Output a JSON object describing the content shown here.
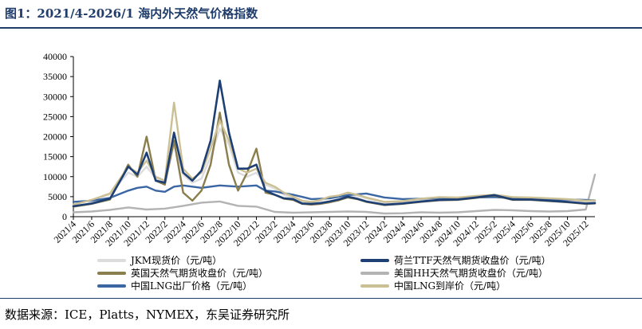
{
  "header": {
    "title": "图1：2021/4-2026/1 海内外天然气价格指数"
  },
  "footer": {
    "source": "数据来源：ICE，Platts，NYMEX，东吴证券研究所"
  },
  "chart_data": {
    "type": "line",
    "title": "2021/4-2026/1 海内外天然气价格指数",
    "ylim": [
      0,
      40000
    ],
    "yticks": [
      0,
      5000,
      10000,
      15000,
      20000,
      25000,
      30000,
      35000,
      40000
    ],
    "x_start": "2021/4",
    "x_end": "2026/1",
    "xtick_labels": [
      "2021/4",
      "2021/6",
      "2021/8",
      "2021/10",
      "2021/12",
      "2022/2",
      "2022/4",
      "2022/6",
      "2022/8",
      "2022/10",
      "2022/12",
      "2023/2",
      "2023/4",
      "2023/6",
      "2023/8",
      "2023/10",
      "2023/12",
      "2024/2",
      "2024/4",
      "2024/6",
      "2024/8",
      "2024/10",
      "2024/12",
      "2025/2",
      "2025/4",
      "2025/6",
      "2025/8",
      "2025/10",
      "2025/12"
    ],
    "grid": false,
    "legend_position": "bottom",
    "series": [
      {
        "name": "JKM现货价（元/吨）",
        "color": "#dcdcdc",
        "points": [
          [
            "2021/4",
            3000
          ],
          [
            "2021/6",
            4200
          ],
          [
            "2021/8",
            5600
          ],
          [
            "2021/10",
            11000
          ],
          [
            "2021/11",
            10000
          ],
          [
            "2021/12",
            12500
          ],
          [
            "2022/1",
            9500
          ],
          [
            "2022/2",
            8500
          ],
          [
            "2022/3",
            18000
          ],
          [
            "2022/4",
            10500
          ],
          [
            "2022/5",
            8500
          ],
          [
            "2022/6",
            9500
          ],
          [
            "2022/7",
            15000
          ],
          [
            "2022/8",
            22000
          ],
          [
            "2022/9",
            18000
          ],
          [
            "2022/10",
            11000
          ],
          [
            "2022/11",
            10000
          ],
          [
            "2022/12",
            11000
          ],
          [
            "2023/1",
            8000
          ],
          [
            "2023/2",
            7000
          ],
          [
            "2023/3",
            5500
          ],
          [
            "2023/4",
            4500
          ],
          [
            "2023/5",
            3800
          ],
          [
            "2023/6",
            3500
          ],
          [
            "2023/7",
            4000
          ],
          [
            "2023/8",
            4800
          ],
          [
            "2023/9",
            5000
          ],
          [
            "2023/10",
            5600
          ],
          [
            "2023/11",
            5200
          ],
          [
            "2023/12",
            4600
          ],
          [
            "2024/2",
            3500
          ],
          [
            "2024/4",
            3700
          ],
          [
            "2024/6",
            4300
          ],
          [
            "2024/8",
            4700
          ],
          [
            "2024/10",
            4600
          ],
          [
            "2024/12",
            5000
          ],
          [
            "2025/2",
            5300
          ],
          [
            "2025/4",
            4700
          ],
          [
            "2025/6",
            4600
          ],
          [
            "2025/8",
            4400
          ],
          [
            "2025/10",
            4200
          ],
          [
            "2025/12",
            3800
          ],
          [
            "2026/1",
            3900
          ]
        ]
      },
      {
        "name": "荷兰TTF天然气期货收盘价（元/吨）",
        "color": "#1e3f73",
        "points": [
          [
            "2021/4",
            2600
          ],
          [
            "2021/6",
            3300
          ],
          [
            "2021/8",
            4500
          ],
          [
            "2021/10",
            12500
          ],
          [
            "2021/11",
            10500
          ],
          [
            "2021/12",
            16000
          ],
          [
            "2022/1",
            9000
          ],
          [
            "2022/2",
            8500
          ],
          [
            "2022/3",
            21000
          ],
          [
            "2022/4",
            11000
          ],
          [
            "2022/5",
            9000
          ],
          [
            "2022/6",
            11500
          ],
          [
            "2022/7",
            19000
          ],
          [
            "2022/8",
            34000
          ],
          [
            "2022/9",
            21000
          ],
          [
            "2022/10",
            12000
          ],
          [
            "2022/11",
            12000
          ],
          [
            "2022/12",
            13000
          ],
          [
            "2023/1",
            6500
          ],
          [
            "2023/2",
            5500
          ],
          [
            "2023/3",
            4600
          ],
          [
            "2023/4",
            4400
          ],
          [
            "2023/5",
            3300
          ],
          [
            "2023/6",
            3200
          ],
          [
            "2023/7",
            3400
          ],
          [
            "2023/8",
            3800
          ],
          [
            "2023/9",
            4300
          ],
          [
            "2023/10",
            5000
          ],
          [
            "2023/11",
            4500
          ],
          [
            "2023/12",
            3800
          ],
          [
            "2024/2",
            3000
          ],
          [
            "2024/4",
            3300
          ],
          [
            "2024/6",
            3800
          ],
          [
            "2024/8",
            4200
          ],
          [
            "2024/10",
            4300
          ],
          [
            "2024/12",
            4800
          ],
          [
            "2025/2",
            5400
          ],
          [
            "2025/4",
            4300
          ],
          [
            "2025/6",
            4300
          ],
          [
            "2025/8",
            4000
          ],
          [
            "2025/10",
            3700
          ],
          [
            "2025/12",
            3300
          ],
          [
            "2026/1",
            3400
          ]
        ]
      },
      {
        "name": "英国天然气期货收盘价（元/吨）",
        "color": "#8a7e4c",
        "points": [
          [
            "2021/4",
            2500
          ],
          [
            "2021/6",
            3200
          ],
          [
            "2021/8",
            4300
          ],
          [
            "2021/10",
            13000
          ],
          [
            "2021/11",
            10000
          ],
          [
            "2021/12",
            20000
          ],
          [
            "2022/1",
            9000
          ],
          [
            "2022/2",
            8000
          ],
          [
            "2022/3",
            19000
          ],
          [
            "2022/4",
            6000
          ],
          [
            "2022/5",
            4000
          ],
          [
            "2022/6",
            6500
          ],
          [
            "2022/7",
            13000
          ],
          [
            "2022/8",
            26000
          ],
          [
            "2022/9",
            13000
          ],
          [
            "2022/10",
            6500
          ],
          [
            "2022/11",
            11000
          ],
          [
            "2022/12",
            17000
          ],
          [
            "2023/1",
            6000
          ],
          [
            "2023/2",
            5500
          ],
          [
            "2023/3",
            4500
          ],
          [
            "2023/4",
            4200
          ],
          [
            "2023/5",
            3200
          ],
          [
            "2023/6",
            3000
          ],
          [
            "2023/7",
            3200
          ],
          [
            "2023/8",
            3600
          ],
          [
            "2023/9",
            4100
          ],
          [
            "2023/10",
            4800
          ],
          [
            "2023/11",
            4400
          ],
          [
            "2023/12",
            3700
          ],
          [
            "2024/2",
            2900
          ],
          [
            "2024/4",
            3200
          ],
          [
            "2024/6",
            3700
          ],
          [
            "2024/8",
            4100
          ],
          [
            "2024/10",
            4200
          ],
          [
            "2024/12",
            4700
          ],
          [
            "2025/2",
            5300
          ],
          [
            "2025/4",
            4200
          ],
          [
            "2025/6",
            4200
          ],
          [
            "2025/8",
            3900
          ],
          [
            "2025/10",
            3600
          ],
          [
            "2025/12",
            3200
          ],
          [
            "2026/1",
            3300
          ]
        ]
      },
      {
        "name": "美国HH天然气期货收盘价（元/吨）",
        "color": "#b3b3b3",
        "points": [
          [
            "2021/4",
            1100
          ],
          [
            "2021/6",
            1300
          ],
          [
            "2021/8",
            1700
          ],
          [
            "2021/10",
            2300
          ],
          [
            "2021/12",
            1800
          ],
          [
            "2022/2",
            2000
          ],
          [
            "2022/4",
            2700
          ],
          [
            "2022/6",
            3500
          ],
          [
            "2022/8",
            3800
          ],
          [
            "2022/10",
            2700
          ],
          [
            "2022/12",
            2500
          ],
          [
            "2023/2",
            1200
          ],
          [
            "2023/4",
            1000
          ],
          [
            "2023/6",
            1100
          ],
          [
            "2023/8",
            1200
          ],
          [
            "2023/10",
            1300
          ],
          [
            "2023/12",
            1200
          ],
          [
            "2024/2",
            800
          ],
          [
            "2024/4",
            850
          ],
          [
            "2024/6",
            1100
          ],
          [
            "2024/8",
            1000
          ],
          [
            "2024/10",
            1100
          ],
          [
            "2024/12",
            1400
          ],
          [
            "2025/2",
            1700
          ],
          [
            "2025/4",
            1600
          ],
          [
            "2025/6",
            1400
          ],
          [
            "2025/8",
            1300
          ],
          [
            "2025/10",
            1400
          ],
          [
            "2025/12",
            1800
          ],
          [
            "2026/1",
            10500
          ]
        ]
      },
      {
        "name": "中国LNG出厂价格（元/吨）",
        "color": "#3a66a3",
        "points": [
          [
            "2021/4",
            3700
          ],
          [
            "2021/6",
            4000
          ],
          [
            "2021/8",
            4700
          ],
          [
            "2021/10",
            6500
          ],
          [
            "2021/11",
            7200
          ],
          [
            "2021/12",
            7500
          ],
          [
            "2022/1",
            6500
          ],
          [
            "2022/2",
            6200
          ],
          [
            "2022/3",
            7500
          ],
          [
            "2022/4",
            7800
          ],
          [
            "2022/6",
            7200
          ],
          [
            "2022/8",
            7800
          ],
          [
            "2022/10",
            7500
          ],
          [
            "2022/12",
            7800
          ],
          [
            "2023/1",
            6500
          ],
          [
            "2023/2",
            6300
          ],
          [
            "2023/4",
            5500
          ],
          [
            "2023/6",
            4400
          ],
          [
            "2023/8",
            4600
          ],
          [
            "2023/10",
            5400
          ],
          [
            "2023/12",
            5800
          ],
          [
            "2024/2",
            4800
          ],
          [
            "2024/4",
            4400
          ],
          [
            "2024/6",
            4500
          ],
          [
            "2024/8",
            4700
          ],
          [
            "2024/10",
            4600
          ],
          [
            "2024/12",
            4800
          ],
          [
            "2025/2",
            4900
          ],
          [
            "2025/4",
            4600
          ],
          [
            "2025/6",
            4500
          ],
          [
            "2025/8",
            4300
          ],
          [
            "2025/10",
            4300
          ],
          [
            "2025/12",
            4200
          ],
          [
            "2026/1",
            4100
          ]
        ]
      },
      {
        "name": "中国LNG到岸价（元/吨）",
        "color": "#cbbf94",
        "points": [
          [
            "2021/4",
            3000
          ],
          [
            "2021/6",
            4200
          ],
          [
            "2021/8",
            5800
          ],
          [
            "2021/10",
            12500
          ],
          [
            "2021/11",
            11000
          ],
          [
            "2021/12",
            14000
          ],
          [
            "2022/1",
            10000
          ],
          [
            "2022/2",
            9000
          ],
          [
            "2022/3",
            28500
          ],
          [
            "2022/4",
            12000
          ],
          [
            "2022/5",
            9500
          ],
          [
            "2022/6",
            11000
          ],
          [
            "2022/7",
            17000
          ],
          [
            "2022/8",
            24000
          ],
          [
            "2022/9",
            19000
          ],
          [
            "2022/10",
            12000
          ],
          [
            "2022/11",
            11000
          ],
          [
            "2022/12",
            12000
          ],
          [
            "2023/1",
            8500
          ],
          [
            "2023/2",
            7500
          ],
          [
            "2023/3",
            6000
          ],
          [
            "2023/4",
            5000
          ],
          [
            "2023/5",
            4000
          ],
          [
            "2023/6",
            3700
          ],
          [
            "2023/7",
            4200
          ],
          [
            "2023/8",
            5000
          ],
          [
            "2023/9",
            5300
          ],
          [
            "2023/10",
            6000
          ],
          [
            "2023/11",
            5500
          ],
          [
            "2023/12",
            4800
          ],
          [
            "2024/2",
            3700
          ],
          [
            "2024/4",
            3900
          ],
          [
            "2024/6",
            4500
          ],
          [
            "2024/8",
            4900
          ],
          [
            "2024/10",
            4800
          ],
          [
            "2024/12",
            5200
          ],
          [
            "2025/2",
            5500
          ],
          [
            "2025/4",
            4900
          ],
          [
            "2025/6",
            4800
          ],
          [
            "2025/8",
            4600
          ],
          [
            "2025/10",
            4400
          ],
          [
            "2025/12",
            4000
          ],
          [
            "2026/1",
            4100
          ]
        ]
      }
    ]
  }
}
